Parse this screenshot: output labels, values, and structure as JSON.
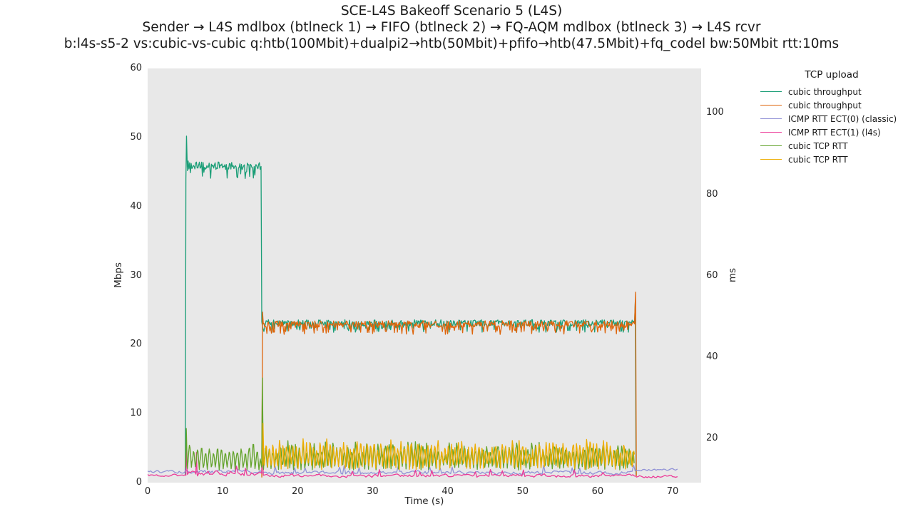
{
  "figure": {
    "title_lines": [
      "SCE-L4S Bakeoff Scenario 5 (L4S)",
      "Sender → L4S mdlbox (btlneck 1) → FIFO (btlneck 2) → FQ-AQM mdlbox (btlneck 3) → L4S rcvr",
      "b:l4s-s5-2 vs:cubic-vs-cubic q:htb(100Mbit)+dualpi2→htb(50Mbit)+pfifo→htb(47.5Mbit)+fq_codel bw:50Mbit rtt:10ms"
    ]
  },
  "chart_data": {
    "type": "line",
    "title": "SCE-L4S Bakeoff Scenario 5 (L4S)",
    "xlabel": "Time (s)",
    "ylabel_left": "Mbps",
    "ylabel_right": "ms",
    "xlim": [
      0,
      73.8
    ],
    "ylim_left": [
      0,
      60
    ],
    "ylim_right": [
      9.2,
      110.9
    ],
    "xticks": [
      0,
      10,
      20,
      30,
      40,
      50,
      60,
      70
    ],
    "yticks_left": [
      0,
      10,
      20,
      30,
      40,
      50,
      60
    ],
    "yticks_right": [
      20,
      40,
      60,
      80,
      100
    ],
    "plot_background": "#e8e8e8",
    "grid": false,
    "legend": {
      "title": "TCP upload",
      "position": "outside-top-right",
      "entries": [
        {
          "label": "cubic throughput",
          "color": "#1b9e77"
        },
        {
          "label": "cubic throughput",
          "color": "#de650b"
        },
        {
          "label": "ICMP RTT ECT(0) (classic)",
          "color": "#9192d6"
        },
        {
          "label": "ICMP RTT ECT(1) (l4s)",
          "color": "#ec3a97"
        },
        {
          "label": "cubic TCP RTT",
          "color": "#62a32a"
        },
        {
          "label": "cubic TCP RTT",
          "color": "#edad02"
        }
      ]
    },
    "series": [
      {
        "name": "cubic throughput (flow 1)",
        "axis": "left",
        "color": "#1b9e77",
        "summary": "starts t=5 with spike to 50.2 Mbps, sawtooth ~44.3-46.6 Mbps until t=15.2, drops to ~23 Mbps sharing link until t=65, end spike ~26.3 Mbps, then stops",
        "segments": [
          {
            "points": [
              [
                5.02,
                1.2
              ],
              [
                5.1,
                44.0
              ],
              [
                5.18,
                50.2
              ],
              [
                5.3,
                45.2
              ],
              [
                5.4,
                46.6
              ]
            ]
          },
          {
            "mode": "band",
            "t0": 5.5,
            "t1": 15.05,
            "dt": 0.1,
            "base": 45.9,
            "amp": 0.55,
            "dipDepth": 1.7,
            "dipProb": 0.2
          },
          {
            "points": [
              [
                15.12,
                45.8
              ],
              [
                15.22,
                23.3
              ]
            ]
          },
          {
            "mode": "band",
            "t0": 15.3,
            "t1": 64.85,
            "dt": 0.1,
            "base": 23.15,
            "amp": 0.45,
            "dipDepth": 1.25,
            "dipProb": 0.15
          },
          {
            "points": [
              [
                64.92,
                23.2
              ],
              [
                65.02,
                26.3
              ],
              [
                65.12,
                1.2
              ]
            ]
          }
        ]
      },
      {
        "name": "cubic throughput (flow 2)",
        "axis": "left",
        "color": "#de650b",
        "summary": "starts t=15.2 with spike to 24.7 Mbps, ~22.9 Mbps until t=65, end spike to 27.6 Mbps, then stops",
        "segments": [
          {
            "points": [
              [
                15.22,
                0.8
              ],
              [
                15.32,
                24.7
              ],
              [
                15.42,
                23.0
              ]
            ]
          },
          {
            "mode": "band",
            "t0": 15.5,
            "t1": 64.85,
            "dt": 0.1,
            "base": 22.95,
            "amp": 0.5,
            "dipDepth": 1.35,
            "dipProb": 0.18
          },
          {
            "points": [
              [
                64.92,
                23.0
              ],
              [
                65.06,
                27.6
              ],
              [
                65.16,
                1.0
              ]
            ]
          }
        ]
      },
      {
        "name": "ICMP RTT ECT(0) (classic)",
        "axis": "right",
        "color": "#9192d6",
        "summary": "~11.8 ms throughout, small bumps; rises to ~12.4 ms after flows stop (t=65-70.6)",
        "segments": [
          {
            "mode": "noise",
            "t0": 0,
            "t1": 5.0,
            "dt": 0.2,
            "base": 11.9,
            "amp": 0.35
          },
          {
            "mode": "noise",
            "t0": 5.0,
            "t1": 15.2,
            "dt": 0.2,
            "base": 11.8,
            "amp": 0.5,
            "bump": 1.6,
            "bumpProb": 0.05
          },
          {
            "mode": "noise",
            "t0": 15.2,
            "t1": 65.0,
            "dt": 0.2,
            "base": 11.6,
            "amp": 0.45,
            "bump": 1.9,
            "bumpProb": 0.05
          },
          {
            "mode": "noise",
            "t0": 65.0,
            "t1": 70.6,
            "dt": 0.2,
            "base": 12.4,
            "amp": 0.3
          }
        ]
      },
      {
        "name": "ICMP RTT ECT(1) (l4s)",
        "axis": "right",
        "color": "#ec3a97",
        "summary": "~11 ms throughout; spikes to ~17.3 ms at t=5.2, ~16.6 ms at t=6.5, ~19.8 ms at t=15.3; ~10.7 ms after t=65",
        "segments": [
          {
            "mode": "noise",
            "t0": 0,
            "t1": 5.0,
            "dt": 0.2,
            "base": 11.0,
            "amp": 0.3
          },
          {
            "points": [
              [
                5.1,
                11.0
              ],
              [
                5.18,
                17.3
              ],
              [
                5.3,
                11.2
              ]
            ]
          },
          {
            "mode": "noise",
            "t0": 5.35,
            "t1": 6.35,
            "dt": 0.2,
            "base": 11.4,
            "amp": 0.6
          },
          {
            "points": [
              [
                6.42,
                11.3
              ],
              [
                6.5,
                16.6
              ],
              [
                6.6,
                11.2
              ]
            ]
          },
          {
            "mode": "noise",
            "t0": 6.65,
            "t1": 15.1,
            "dt": 0.2,
            "base": 11.4,
            "amp": 0.7,
            "bump": 2.2,
            "bumpProb": 0.06
          },
          {
            "points": [
              [
                15.2,
                11.5
              ],
              [
                15.3,
                19.8
              ],
              [
                15.42,
                11.0
              ]
            ]
          },
          {
            "mode": "noise",
            "t0": 15.5,
            "t1": 65.0,
            "dt": 0.2,
            "base": 10.9,
            "amp": 0.4,
            "bump": 1.6,
            "bumpProb": 0.04
          },
          {
            "mode": "noise",
            "t0": 65.0,
            "t1": 70.6,
            "dt": 0.2,
            "base": 10.7,
            "amp": 0.3
          }
        ]
      },
      {
        "name": "cubic TCP RTT (flow 1)",
        "axis": "right",
        "color": "#62a32a",
        "summary": "starts t=5 spiking to ~22.5 ms, sawtooth ~12.7-17.9 ms until t=15.2, big spike to ~34.9 ms at t=15.3, then oscillates ~13-18.2 ms until t=65",
        "segments": [
          {
            "points": [
              [
                5.05,
                13.0
              ],
              [
                5.15,
                22.5
              ],
              [
                5.28,
                13.3
              ]
            ]
          },
          {
            "mode": "saw",
            "t0": 5.3,
            "t1": 15.1,
            "period": 0.53,
            "lo": 12.7,
            "hi": 17.9,
            "jitter": 0.5,
            "rise": 0.6
          },
          {
            "points": [
              [
                15.2,
                13.0
              ],
              [
                15.3,
                34.9
              ],
              [
                15.42,
                14.0
              ]
            ]
          },
          {
            "mode": "saw",
            "t0": 15.45,
            "t1": 64.9,
            "period": 0.5,
            "lo": 13.0,
            "hi": 18.2,
            "jitter": 0.7,
            "rise": 0.55
          }
        ]
      },
      {
        "name": "cubic TCP RTT (flow 2)",
        "axis": "right",
        "color": "#edad02",
        "summary": "starts t=15.3 spiking to ~23.8 ms, then dense oscillation ~13.2-18.6 ms until t=65",
        "segments": [
          {
            "points": [
              [
                15.3,
                13.5
              ],
              [
                15.38,
                23.8
              ],
              [
                15.5,
                14.0
              ]
            ]
          },
          {
            "mode": "saw",
            "t0": 15.55,
            "t1": 64.9,
            "period": 0.45,
            "lo": 13.2,
            "hi": 18.6,
            "jitter": 0.8,
            "rise": 0.55
          }
        ]
      }
    ]
  }
}
